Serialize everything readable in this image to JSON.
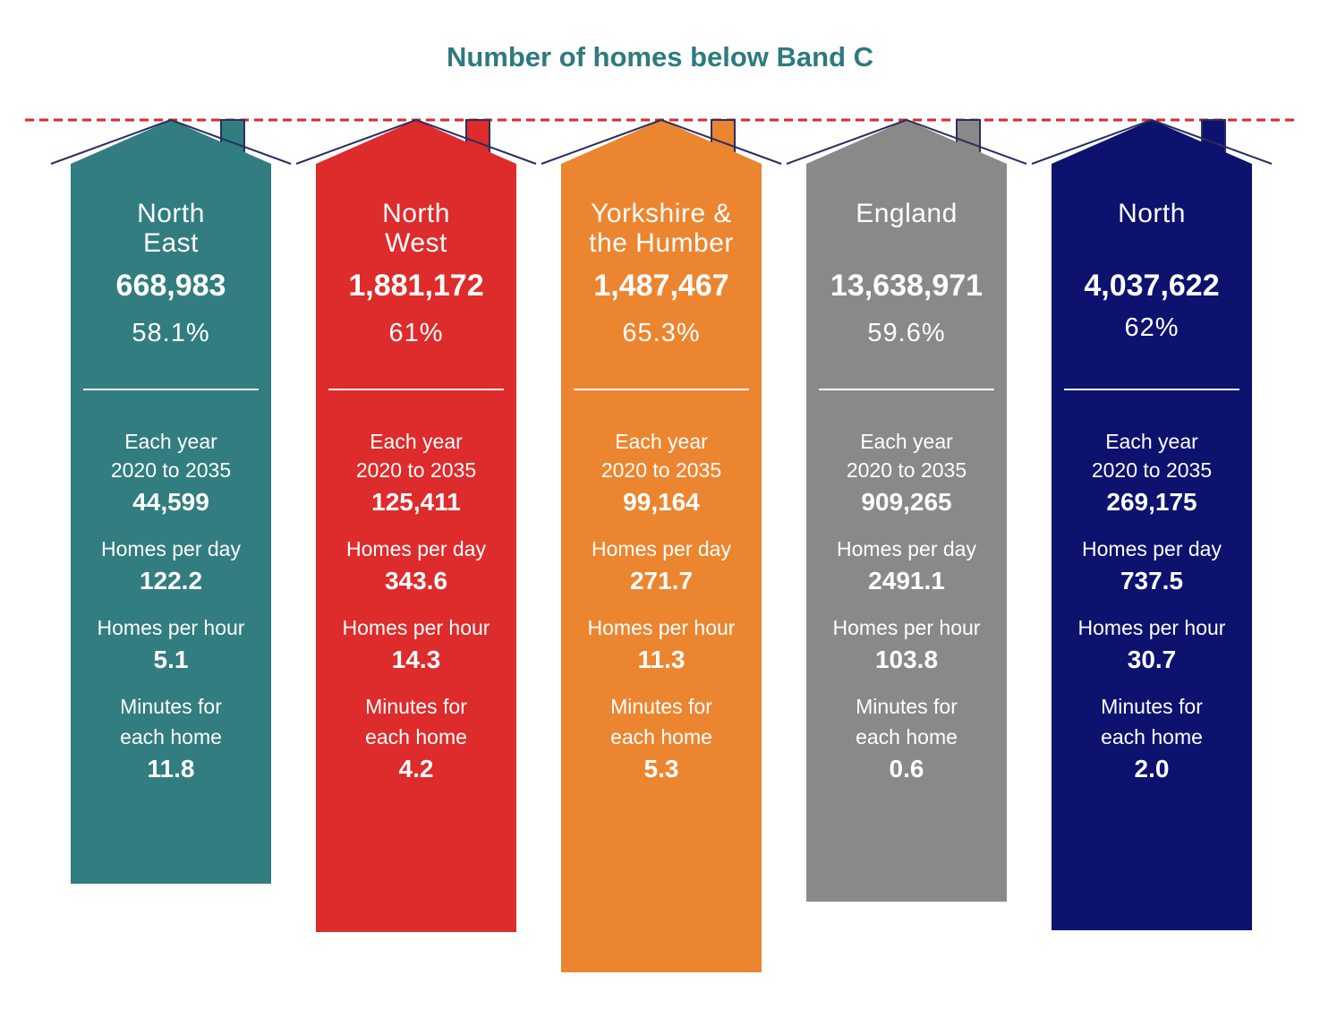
{
  "chart_data": {
    "type": "table",
    "title": "Number of homes below Band C",
    "labels": {
      "each_year": "Each year",
      "period": "2020 to 2035",
      "per_day": "Homes per day",
      "per_hour": "Homes per hour",
      "minutes_line1": "Minutes for",
      "minutes_line2": "each home"
    },
    "regions": [
      {
        "name_line1": "North",
        "name_line2": "East",
        "homes": "668,983",
        "percent": "58.1%",
        "each_year": "44,599",
        "per_day": "122.2",
        "per_hour": "5.1",
        "minutes": "11.8",
        "color": "#327d7f"
      },
      {
        "name_line1": "North",
        "name_line2": "West",
        "homes": "1,881,172",
        "percent": "61%",
        "each_year": "125,411",
        "per_day": "343.6",
        "per_hour": "14.3",
        "minutes": "4.2",
        "color": "#de2b2b"
      },
      {
        "name_line1": "Yorkshire &",
        "name_line2": "the Humber",
        "homes": "1,487,467",
        "percent": "65.3%",
        "each_year": "99,164",
        "per_day": "271.7",
        "per_hour": "11.3",
        "minutes": "5.3",
        "color": "#ec8530"
      },
      {
        "name_line1": "England",
        "name_line2": "",
        "homes": "13,638,971",
        "percent": "59.6%",
        "each_year": "909,265",
        "per_day": "2491.1",
        "per_hour": "103.8",
        "minutes": "0.6",
        "color": "#898989"
      },
      {
        "name_line1": "North",
        "name_line2": "",
        "homes": "4,037,622",
        "percent": "62%",
        "each_year": "269,175",
        "per_day": "737.5",
        "per_hour": "30.7",
        "minutes": "2.0",
        "color": "#0c126e"
      }
    ]
  }
}
